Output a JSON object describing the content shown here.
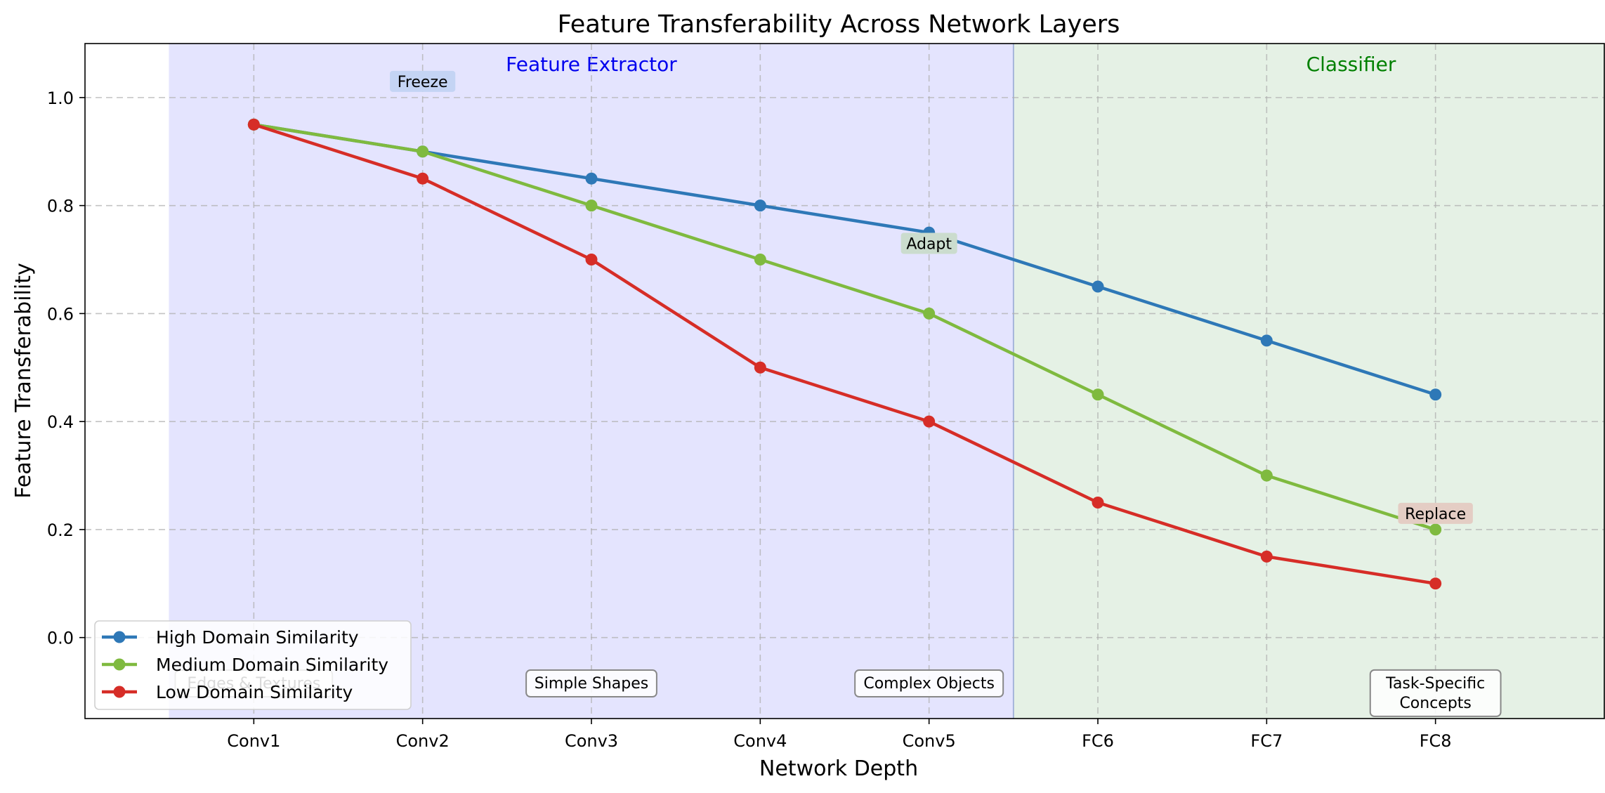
{
  "chart_data": {
    "type": "line",
    "title": "Feature Transferability Across Network Layers",
    "xlabel": "Network Depth",
    "ylabel": "Feature Transferability",
    "categories": [
      "Conv1",
      "Conv2",
      "Conv3",
      "Conv4",
      "Conv5",
      "FC6",
      "FC7",
      "FC8"
    ],
    "xlim": [
      -1,
      8
    ],
    "ylim": [
      -0.15,
      1.1
    ],
    "yticks": [
      0.0,
      0.2,
      0.4,
      0.6,
      0.8,
      1.0
    ],
    "ytick_labels": [
      "0.0",
      "0.2",
      "0.4",
      "0.6",
      "0.8",
      "1.0"
    ],
    "grid": true,
    "legend_position": "lower-left",
    "series": [
      {
        "name": "High Domain Similarity",
        "color": "#2e78b7",
        "values": [
          0.95,
          0.9,
          0.85,
          0.8,
          0.75,
          0.65,
          0.55,
          0.45
        ]
      },
      {
        "name": "Medium Domain Similarity",
        "color": "#7fba3f",
        "values": [
          0.95,
          0.9,
          0.8,
          0.7,
          0.6,
          0.45,
          0.3,
          0.2
        ]
      },
      {
        "name": "Low Domain Similarity",
        "color": "#d62d27",
        "values": [
          0.95,
          0.85,
          0.7,
          0.5,
          0.4,
          0.25,
          0.15,
          0.1
        ]
      }
    ],
    "regions": [
      {
        "label": "Feature Extractor",
        "x_start": -0.5,
        "x_end": 4.5,
        "fill": "#e4e4fe",
        "text_color": "#0000ee"
      },
      {
        "label": "Classifier",
        "x_start": 4.5,
        "x_end": 8.5,
        "fill": "#e5f1e5",
        "text_color": "#008000"
      }
    ],
    "strategy_annotations": [
      {
        "text": "Freeze",
        "x": 1,
        "y": 1.03,
        "fill": "#c4d4f4"
      },
      {
        "text": "Adapt",
        "x": 4,
        "y": 0.73,
        "fill": "#cbdcce"
      },
      {
        "text": "Replace",
        "x": 7,
        "y": 0.23,
        "fill": "#e4cdc4"
      }
    ],
    "feature_annotations": [
      {
        "lines": [
          "Edges & Textures"
        ],
        "x": 0,
        "y": -0.085
      },
      {
        "lines": [
          "Simple Shapes"
        ],
        "x": 2,
        "y": -0.085
      },
      {
        "lines": [
          "Complex Objects"
        ],
        "x": 4,
        "y": -0.085
      },
      {
        "lines": [
          "Task-Specific",
          "Concepts"
        ],
        "x": 7,
        "y": -0.103
      }
    ]
  }
}
